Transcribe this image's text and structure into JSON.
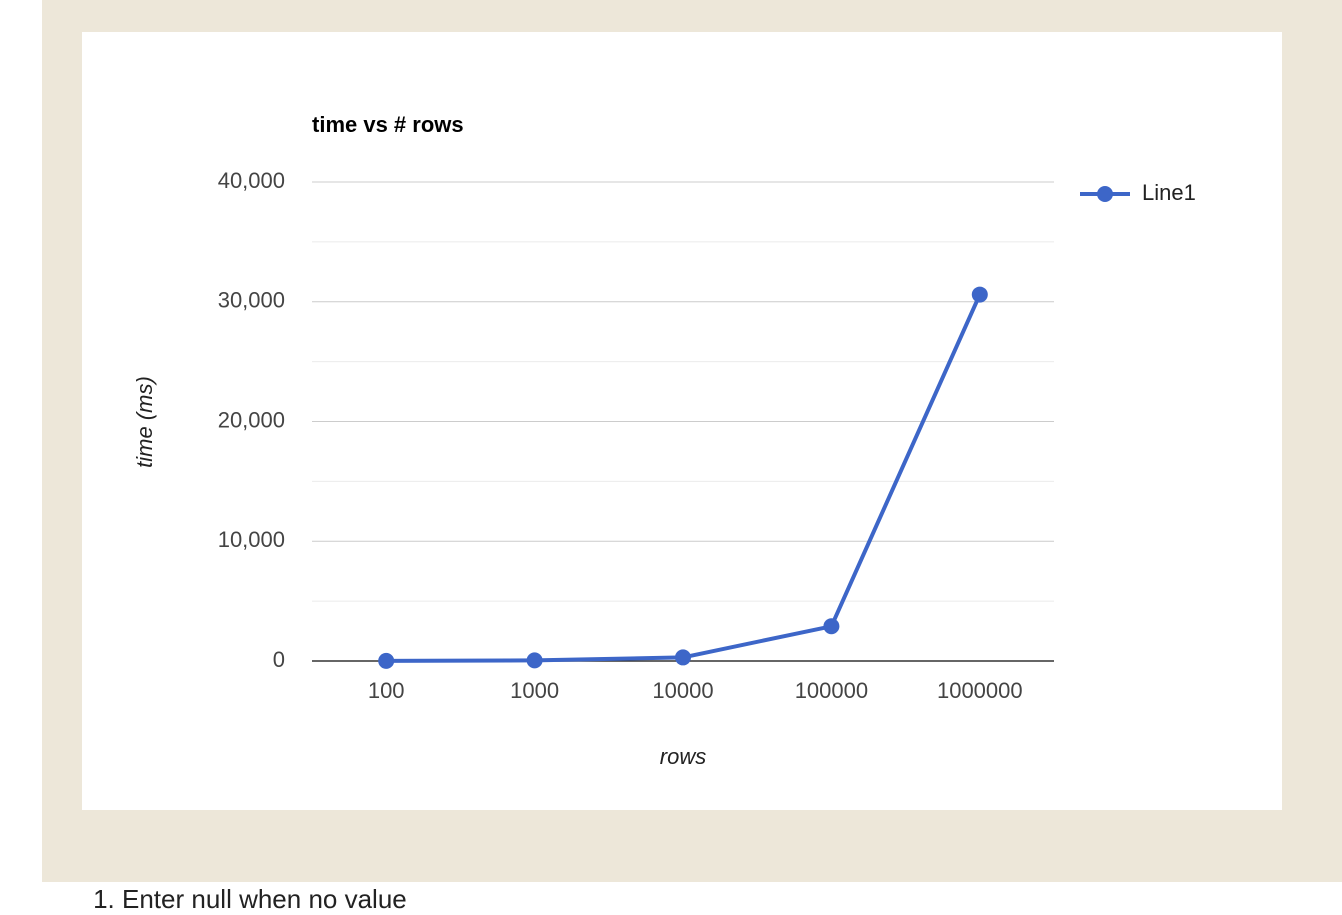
{
  "chart_data": {
    "type": "line",
    "title": "time vs # rows",
    "x_label": "rows",
    "y_label": "time (ms)",
    "categories": [
      "100",
      "1000",
      "10000",
      "100000",
      "1000000"
    ],
    "series": [
      {
        "name": "Line1",
        "color": "#3d66c8",
        "values": [
          10,
          50,
          300,
          2900,
          30600
        ]
      }
    ],
    "ylim": [
      0,
      40000
    ],
    "yticks": [
      0,
      {
        "value": 10000,
        "label": "10,000"
      },
      {
        "value": 20000,
        "label": "20,000"
      },
      {
        "value": 30000,
        "label": "30,000"
      },
      {
        "value": 40000,
        "label": "40,000"
      }
    ],
    "minor_yticks": [
      5000,
      15000,
      25000,
      35000
    ],
    "grid": true,
    "legend": "right"
  },
  "notes": [
    "Enter null when no value"
  ]
}
